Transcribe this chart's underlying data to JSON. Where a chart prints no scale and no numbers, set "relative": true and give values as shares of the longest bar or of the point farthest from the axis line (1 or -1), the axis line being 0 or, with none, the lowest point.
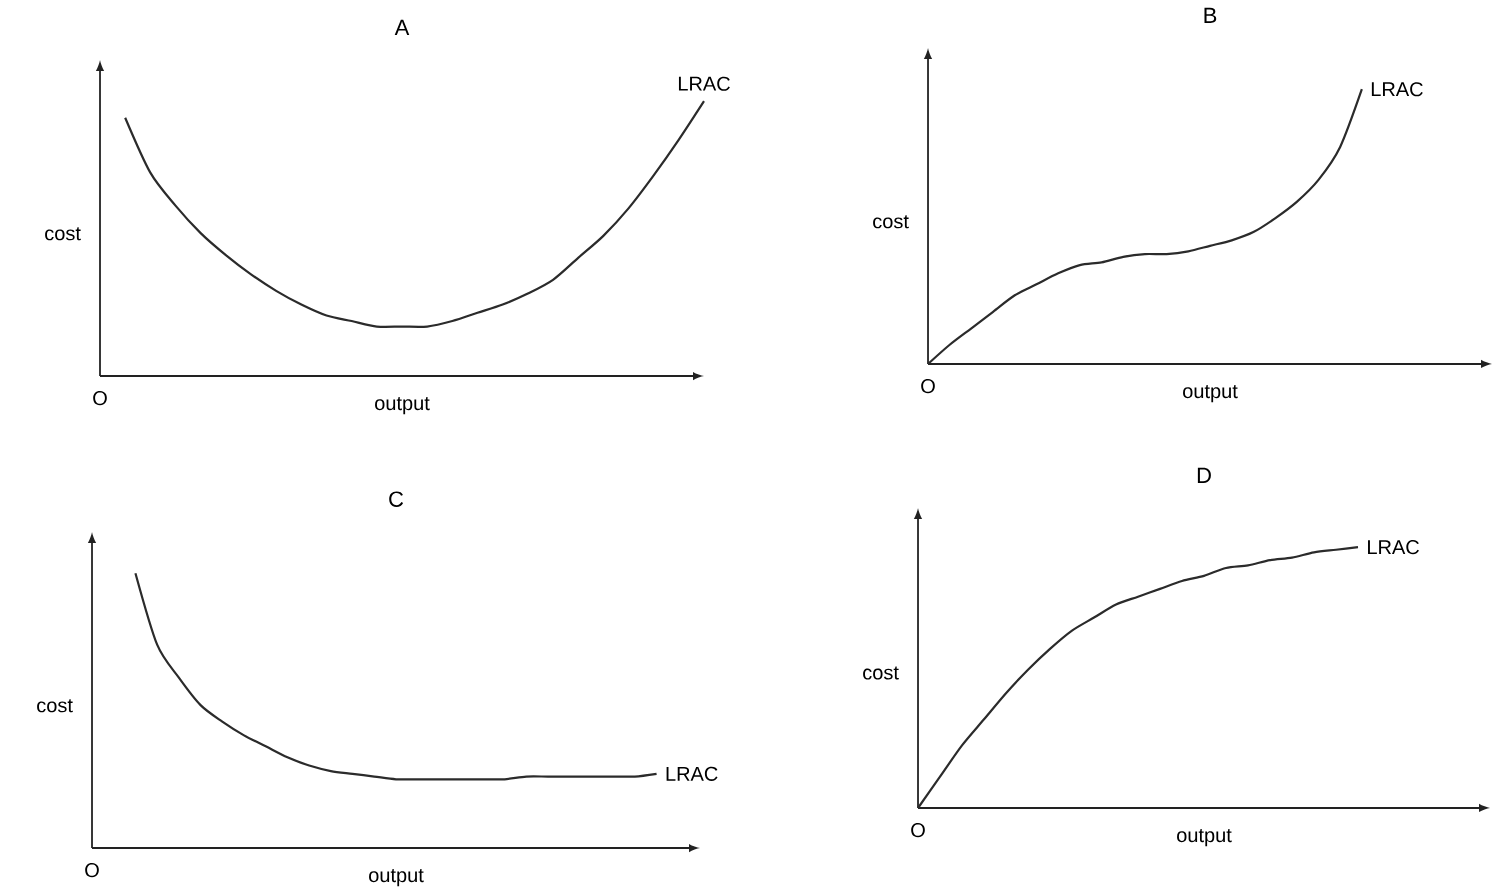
{
  "chart_data": [
    {
      "type": "line",
      "title": "A",
      "xlabel": "output",
      "ylabel": "cost",
      "annotations": [
        "O"
      ],
      "relative": true,
      "categories": [
        null,
        null,
        null,
        null,
        null,
        null,
        null,
        null,
        null,
        null,
        null,
        null,
        null,
        null,
        null,
        null,
        null,
        null,
        null,
        null,
        null,
        null,
        null,
        null,
        null
      ],
      "series": [
        {
          "name": "LRAC",
          "color": "#2b2b2b",
          "values": [
            null,
            0.94,
            0.74,
            0.62,
            0.52,
            0.44,
            0.37,
            0.31,
            0.26,
            0.22,
            0.2,
            0.18,
            0.18,
            0.18,
            0.2,
            0.23,
            0.26,
            0.3,
            0.35,
            0.43,
            0.51,
            0.61,
            0.73,
            0.86,
            1
          ]
        }
      ]
    },
    {
      "type": "line",
      "title": "B",
      "xlabel": "output",
      "ylabel": "cost",
      "annotations": [
        "O"
      ],
      "relative": true,
      "categories": [
        null,
        null,
        null,
        null,
        null,
        null,
        null,
        null,
        null,
        null,
        null,
        null,
        null,
        null,
        null,
        null,
        null,
        null,
        null,
        null,
        null,
        null,
        null,
        null,
        null,
        null,
        null
      ],
      "series": [
        {
          "name": "LRAC",
          "color": "#2b2b2b",
          "values": [
            0,
            0.07,
            0.13,
            0.19,
            0.25,
            0.29,
            0.33,
            0.36,
            0.37,
            0.39,
            0.4,
            0.4,
            0.41,
            0.43,
            0.45,
            0.48,
            0.53,
            0.59,
            0.67,
            0.79,
            1,
            null,
            null,
            null,
            null,
            null,
            null
          ]
        }
      ]
    },
    {
      "type": "line",
      "title": "C",
      "xlabel": "output",
      "ylabel": "cost",
      "annotations": [
        "O"
      ],
      "relative": true,
      "categories": [
        null,
        null,
        null,
        null,
        null,
        null,
        null,
        null,
        null,
        null,
        null,
        null,
        null,
        null,
        null,
        null,
        null,
        null,
        null,
        null,
        null,
        null,
        null,
        null,
        null,
        null,
        null,
        null,
        null
      ],
      "series": [
        {
          "name": "LRAC",
          "color": "#2b2b2b",
          "values": [
            null,
            null,
            1,
            0.74,
            0.62,
            0.52,
            0.46,
            0.41,
            0.37,
            0.33,
            0.3,
            0.28,
            0.27,
            0.26,
            0.25,
            0.25,
            0.25,
            0.25,
            0.25,
            0.25,
            0.26,
            0.26,
            0.26,
            0.26,
            0.26,
            0.26,
            0.27,
            null,
            null
          ]
        }
      ]
    },
    {
      "type": "line",
      "title": "D",
      "xlabel": "output",
      "ylabel": "cost",
      "annotations": [
        "O"
      ],
      "relative": true,
      "categories": [
        null,
        null,
        null,
        null,
        null,
        null,
        null,
        null,
        null,
        null,
        null,
        null,
        null,
        null,
        null,
        null,
        null,
        null,
        null,
        null,
        null,
        null,
        null,
        null,
        null,
        null,
        null
      ],
      "series": [
        {
          "name": "LRAC",
          "color": "#2b2b2b",
          "values": [
            0,
            0.12,
            0.24,
            0.34,
            0.44,
            0.53,
            0.61,
            0.68,
            0.73,
            0.78,
            0.81,
            0.84,
            0.87,
            0.89,
            0.92,
            0.93,
            0.95,
            0.96,
            0.98,
            0.99,
            1,
            null,
            null,
            null,
            null,
            null,
            null
          ]
        }
      ]
    }
  ]
}
